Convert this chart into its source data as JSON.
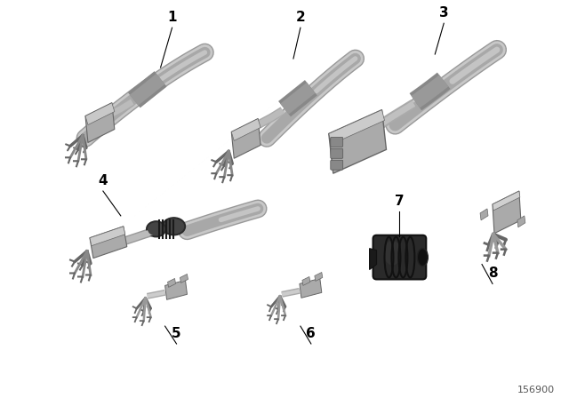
{
  "background_color": "#ffffff",
  "figure_width": 6.4,
  "figure_height": 4.48,
  "dpi": 100,
  "part_number": "156900",
  "cable_color_light": "#c8c8c8",
  "cable_color_mid": "#a8a8a8",
  "cable_color_dark": "#888888",
  "connector_color": "#aaaaaa",
  "connector_dark": "#666666",
  "dark_part_color": "#2a2a2a",
  "dark_part_mid": "#444444",
  "label_fontsize": 11,
  "part_num_fontsize": 8
}
